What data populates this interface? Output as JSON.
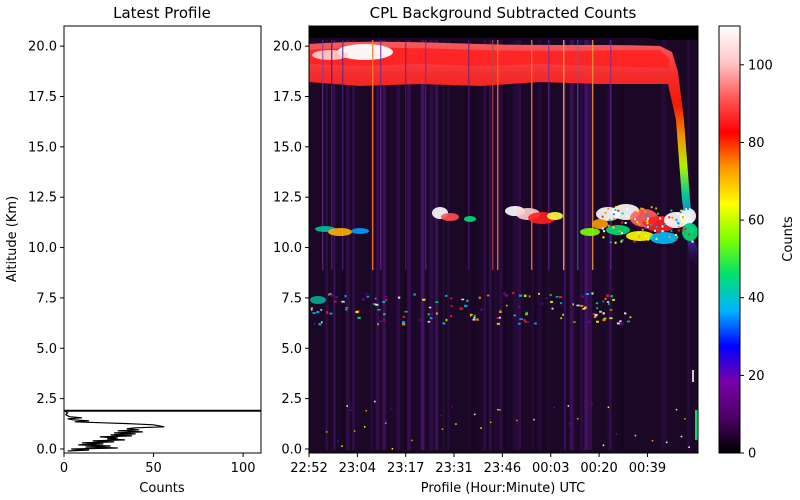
{
  "chart_data": [
    {
      "type": "line",
      "title": "Latest Profile",
      "xlabel": "Counts",
      "ylabel": "Altitude (Km)",
      "xlim": [
        0,
        110
      ],
      "ylim": [
        -0.2,
        21.0
      ],
      "xticks": [
        0,
        50,
        100
      ],
      "yticks": [
        0.0,
        2.5,
        5.0,
        7.5,
        10.0,
        12.5,
        15.0,
        17.5,
        20.0
      ],
      "xtick_labels": [
        "0",
        "50",
        "100"
      ],
      "ytick_labels": [
        "0.0",
        "2.5",
        "5.0",
        "7.5",
        "10.0",
        "12.5",
        "15.0",
        "17.5",
        "20.0"
      ],
      "grid": false,
      "surface_line_altitude": 1.9,
      "series": [
        {
          "color": "#000000",
          "points": [
            {
              "x": 0,
              "y": 1.9
            },
            {
              "x": 2,
              "y": 1.8
            },
            {
              "x": 1,
              "y": 1.7
            },
            {
              "x": 3,
              "y": 1.6
            },
            {
              "x": 10,
              "y": 1.55
            },
            {
              "x": 2,
              "y": 1.5
            },
            {
              "x": 5,
              "y": 1.45
            },
            {
              "x": 14,
              "y": 1.4
            },
            {
              "x": 6,
              "y": 1.35
            },
            {
              "x": 22,
              "y": 1.3
            },
            {
              "x": 38,
              "y": 1.25
            },
            {
              "x": 50,
              "y": 1.2
            },
            {
              "x": 56,
              "y": 1.1
            },
            {
              "x": 40,
              "y": 1.05
            },
            {
              "x": 35,
              "y": 1.0
            },
            {
              "x": 42,
              "y": 0.95
            },
            {
              "x": 30,
              "y": 0.9
            },
            {
              "x": 44,
              "y": 0.85
            },
            {
              "x": 28,
              "y": 0.8
            },
            {
              "x": 40,
              "y": 0.75
            },
            {
              "x": 26,
              "y": 0.7
            },
            {
              "x": 38,
              "y": 0.65
            },
            {
              "x": 20,
              "y": 0.6
            },
            {
              "x": 30,
              "y": 0.55
            },
            {
              "x": 24,
              "y": 0.5
            },
            {
              "x": 34,
              "y": 0.45
            },
            {
              "x": 16,
              "y": 0.4
            },
            {
              "x": 28,
              "y": 0.35
            },
            {
              "x": 10,
              "y": 0.3
            },
            {
              "x": 22,
              "y": 0.25
            },
            {
              "x": 8,
              "y": 0.2
            },
            {
              "x": 26,
              "y": 0.15
            },
            {
              "x": 12,
              "y": 0.1
            },
            {
              "x": 30,
              "y": 0.05
            },
            {
              "x": 4,
              "y": 0.0
            },
            {
              "x": 14,
              "y": -0.05
            },
            {
              "x": 2,
              "y": -0.1
            }
          ]
        }
      ]
    },
    {
      "type": "heatmap",
      "title": "CPL Background Subtracted Counts",
      "xlabel": "Profile (Hour:Minute) UTC",
      "ylabel": "",
      "ylim": [
        -0.2,
        21.0
      ],
      "yticks": [
        0.0,
        2.5,
        5.0,
        7.5,
        10.0,
        12.5,
        15.0,
        17.5,
        20.0
      ],
      "ytick_labels": [
        "0.0",
        "2.5",
        "5.0",
        "7.5",
        "10.0",
        "12.5",
        "15.0",
        "17.5",
        "20.0"
      ],
      "xtick_labels": [
        "22:52",
        "23:04",
        "23:17",
        "23:31",
        "23:46",
        "00:03",
        "00:20",
        "00:39"
      ],
      "x_range_fraction_of_record": [
        0,
        1
      ],
      "colorbar": {
        "label": "Counts",
        "range": [
          0,
          110
        ],
        "ticks": [
          0,
          20,
          40,
          60,
          80,
          100
        ],
        "tick_labels": [
          "0",
          "20",
          "40",
          "60",
          "80",
          "100"
        ],
        "colors": [
          "#000000",
          "#4b0066",
          "#7a00a8",
          "#0000ff",
          "#00b4ff",
          "#00e070",
          "#7cff00",
          "#ffff00",
          "#ff9a00",
          "#ff0000",
          "#ff5a5a",
          "#ffc8c8",
          "#ffffff"
        ]
      },
      "features": [
        {
          "name": "Aircraft level / upper boundary",
          "altitude_km": [
            18.5,
            20.4
          ],
          "peak_counts": 110
        },
        {
          "name": "Cirrus layer",
          "altitude_km": [
            9.8,
            12.3
          ],
          "peak_counts": 110
        },
        {
          "name": "Mid-level cloud",
          "altitude_km": [
            6.4,
            7.6
          ],
          "peak_counts": 60
        },
        {
          "name": "Surface return",
          "altitude_km": [
            0.0,
            0.5
          ],
          "peak_counts": 110
        }
      ],
      "grid": false,
      "legend": "colorbar-right"
    }
  ]
}
